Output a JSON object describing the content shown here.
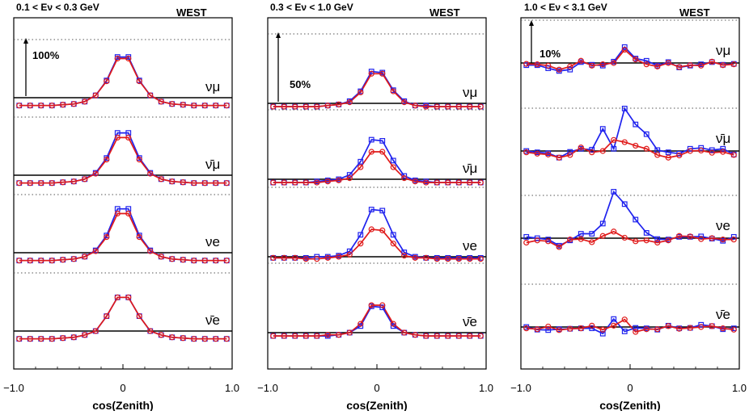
{
  "figure": {
    "xlabel": "cos(Zenith)",
    "region": "WEST"
  },
  "colors": {
    "blue": "#1f22ee",
    "red": "#e01a1a",
    "frame": "#000000"
  },
  "chart_data": [
    {
      "type": "line",
      "energy_label": "0.1 < Eν < 0.3 GeV",
      "scale_label": "100%",
      "region": "WEST",
      "xlabel": "cos(Zenith)",
      "xlim": [
        -1,
        1
      ],
      "xtick_labels": [
        "−1.0",
        "0",
        "1.0"
      ],
      "x": [
        -0.95,
        -0.85,
        -0.75,
        -0.65,
        -0.55,
        -0.45,
        -0.35,
        -0.25,
        -0.15,
        -0.05,
        0.05,
        0.15,
        0.25,
        0.35,
        0.45,
        0.55,
        0.65,
        0.75,
        0.85,
        0.95
      ],
      "rows": [
        {
          "label": "νμ",
          "blue": [
            -10,
            -10,
            -10,
            -10,
            -9,
            -8,
            -5,
            3,
            22,
            52,
            52,
            22,
            3,
            -5,
            -8,
            -9,
            -10,
            -10,
            -10,
            -10
          ],
          "red": [
            -10,
            -10,
            -10,
            -10,
            -9,
            -8,
            -5,
            3,
            21,
            50,
            50,
            21,
            3,
            -5,
            -8,
            -9,
            -10,
            -10,
            -10,
            -10
          ]
        },
        {
          "label": "ν̄μ",
          "blue": [
            -10,
            -10,
            -10,
            -10,
            -9,
            -8,
            -5,
            3,
            22,
            54,
            54,
            22,
            3,
            -5,
            -8,
            -9,
            -10,
            -10,
            -10,
            -10
          ],
          "red": [
            -10,
            -10,
            -10,
            -10,
            -9,
            -8,
            -5,
            2,
            20,
            48,
            48,
            20,
            2,
            -5,
            -8,
            -9,
            -10,
            -10,
            -10,
            -10
          ]
        },
        {
          "label": "νe",
          "blue": [
            -10,
            -10,
            -10,
            -10,
            -9,
            -8,
            -5,
            3,
            22,
            56,
            56,
            22,
            3,
            -5,
            -8,
            -9,
            -10,
            -10,
            -10,
            -10
          ],
          "red": [
            -10,
            -10,
            -10,
            -10,
            -9,
            -8,
            -5,
            2,
            20,
            50,
            50,
            20,
            2,
            -5,
            -8,
            -9,
            -10,
            -10,
            -10,
            -10
          ]
        },
        {
          "label": "ν̄e",
          "blue": [
            -10,
            -10,
            -10,
            -10,
            -9,
            -8,
            -5,
            0,
            19,
            43,
            43,
            19,
            0,
            -5,
            -8,
            -9,
            -10,
            -10,
            -10,
            -10
          ],
          "red": [
            -10,
            -10,
            -10,
            -10,
            -9,
            -8,
            -5,
            0,
            19,
            43,
            43,
            19,
            0,
            -5,
            -8,
            -9,
            -10,
            -10,
            -10,
            -10
          ]
        }
      ]
    },
    {
      "type": "line",
      "energy_label": "0.3 < Eν < 1.0 GeV",
      "scale_label": "50%",
      "region": "WEST",
      "xlabel": "cos(Zenith)",
      "xlim": [
        -1,
        1
      ],
      "xtick_labels": [
        "−1.0",
        "0",
        "1.0"
      ],
      "x": [
        -0.95,
        -0.85,
        -0.75,
        -0.65,
        -0.55,
        -0.45,
        -0.35,
        -0.25,
        -0.15,
        -0.05,
        0.05,
        0.15,
        0.25,
        0.35,
        0.45,
        0.55,
        0.65,
        0.75,
        0.85,
        0.95
      ],
      "rows": [
        {
          "label": "νμ",
          "blue": [
            -3,
            -3,
            -3,
            -3,
            -3,
            -2,
            -1,
            2,
            11,
            29,
            28,
            12,
            2,
            -2,
            -2,
            -3,
            -3,
            -3,
            -3,
            -3
          ],
          "red": [
            -3,
            -3,
            -3,
            -3,
            -3,
            -2,
            -1,
            1,
            10,
            27,
            27,
            11,
            1,
            -2,
            -3,
            -3,
            -3,
            -3,
            -3,
            -3
          ]
        },
        {
          "label": "ν̄μ",
          "blue": [
            -3,
            -3,
            -3,
            -3,
            -2,
            -1,
            0,
            4,
            16,
            36,
            35,
            17,
            3,
            -1,
            -2,
            -3,
            -3,
            -3,
            -3,
            -3
          ],
          "red": [
            -3,
            -3,
            -3,
            -3,
            -3,
            -2,
            -1,
            1,
            11,
            25,
            25,
            11,
            1,
            -2,
            -3,
            -3,
            -3,
            -3,
            -3,
            -3
          ]
        },
        {
          "label": "νe",
          "blue": [
            -1,
            -1,
            -1,
            -1,
            0,
            0,
            1,
            5,
            20,
            43,
            42,
            20,
            4,
            0,
            -1,
            -1,
            -1,
            -1,
            -1,
            -1
          ],
          "red": [
            -1,
            -1,
            -1,
            -2,
            -2,
            -1,
            0,
            2,
            12,
            25,
            24,
            12,
            1,
            -1,
            -1,
            -2,
            -2,
            -2,
            -2,
            -2
          ]
        },
        {
          "label": "ν̄e",
          "blue": [
            -3,
            -3,
            -3,
            -3,
            -3,
            -3,
            -2,
            0,
            6,
            24,
            23,
            6,
            0,
            -2,
            -3,
            -3,
            -3,
            -3,
            -3,
            -3
          ],
          "red": [
            -3,
            -3,
            -3,
            -3,
            -3,
            -2,
            -2,
            0,
            8,
            25,
            25,
            8,
            0,
            -2,
            -3,
            -3,
            -3,
            -3,
            -3,
            -3
          ]
        }
      ]
    },
    {
      "type": "line",
      "energy_label": "1.0 < Eν < 3.1 GeV",
      "scale_label": "10%",
      "region": "WEST",
      "xlabel": "cos(Zenith)",
      "xlim": [
        -1,
        1
      ],
      "xtick_labels": [
        "−1.0",
        "0",
        "1.0"
      ],
      "x": [
        -0.95,
        -0.85,
        -0.75,
        -0.65,
        -0.55,
        -0.45,
        -0.35,
        -0.25,
        -0.15,
        -0.05,
        0.05,
        0.15,
        0.25,
        0.35,
        0.45,
        0.55,
        0.65,
        0.75,
        0.85,
        0.95
      ],
      "rows": [
        {
          "label": "νμ",
          "blue": [
            -0.5,
            -0.5,
            -1.2,
            -1.8,
            -1.5,
            0.2,
            -0.4,
            -0.6,
            0.3,
            3.6,
            1.0,
            0.5,
            -0.6,
            0.2,
            -1.0,
            -0.6,
            -0.3,
            0.2,
            -0.4,
            -0.2
          ],
          "red": [
            -0.2,
            -0.3,
            -0.6,
            -1.5,
            -0.8,
            0.5,
            -0.6,
            -0.3,
            0.0,
            3.0,
            0.8,
            -0.3,
            -0.8,
            0.0,
            -0.9,
            -0.5,
            -0.6,
            0.3,
            -0.5,
            -0.3
          ]
        },
        {
          "label": "ν̄μ",
          "blue": [
            0.0,
            -0.3,
            -0.5,
            -1.5,
            -0.2,
            0.5,
            0.3,
            5.0,
            0.5,
            9.6,
            6.0,
            3.8,
            0.2,
            -0.3,
            -0.6,
            0.5,
            0.7,
            0.2,
            0.5,
            -0.8
          ],
          "red": [
            -0.3,
            -0.6,
            -0.8,
            -1.5,
            -0.9,
            0.8,
            -0.3,
            0.0,
            2.5,
            2.0,
            1.2,
            0.5,
            -0.9,
            -1.5,
            -1.0,
            0.0,
            0.1,
            -0.4,
            -0.2,
            -0.9
          ]
        },
        {
          "label": "νe",
          "blue": [
            0.3,
            0.0,
            -0.3,
            -1.7,
            -0.5,
            1.0,
            1.0,
            3.3,
            10.5,
            7.7,
            4.2,
            1.2,
            -0.2,
            -0.3,
            0.3,
            0.3,
            0.4,
            -0.1,
            -0.6,
            0.3
          ],
          "red": [
            -1.0,
            -0.5,
            -0.7,
            -2.0,
            -0.3,
            -0.2,
            -0.9,
            0.5,
            1.5,
            0.1,
            -0.7,
            -0.5,
            -1.0,
            -0.5,
            0.5,
            0.4,
            -0.2,
            0.0,
            -0.3,
            -0.3
          ]
        },
        {
          "label": "ν̄e",
          "blue": [
            0.0,
            -0.6,
            -0.7,
            -0.5,
            -0.4,
            -0.3,
            -0.3,
            -1.5,
            1.8,
            -1.0,
            -0.2,
            -0.3,
            -0.6,
            0.3,
            -0.3,
            -0.2,
            0.5,
            0.2,
            -0.5,
            -0.3
          ],
          "red": [
            -0.3,
            -0.5,
            0.1,
            -0.7,
            -0.4,
            -0.3,
            0.3,
            -0.6,
            0.3,
            1.7,
            -1.1,
            -0.5,
            -0.5,
            0.2,
            -0.4,
            -0.2,
            0.0,
            0.2,
            -0.3,
            -0.6
          ]
        }
      ]
    }
  ]
}
